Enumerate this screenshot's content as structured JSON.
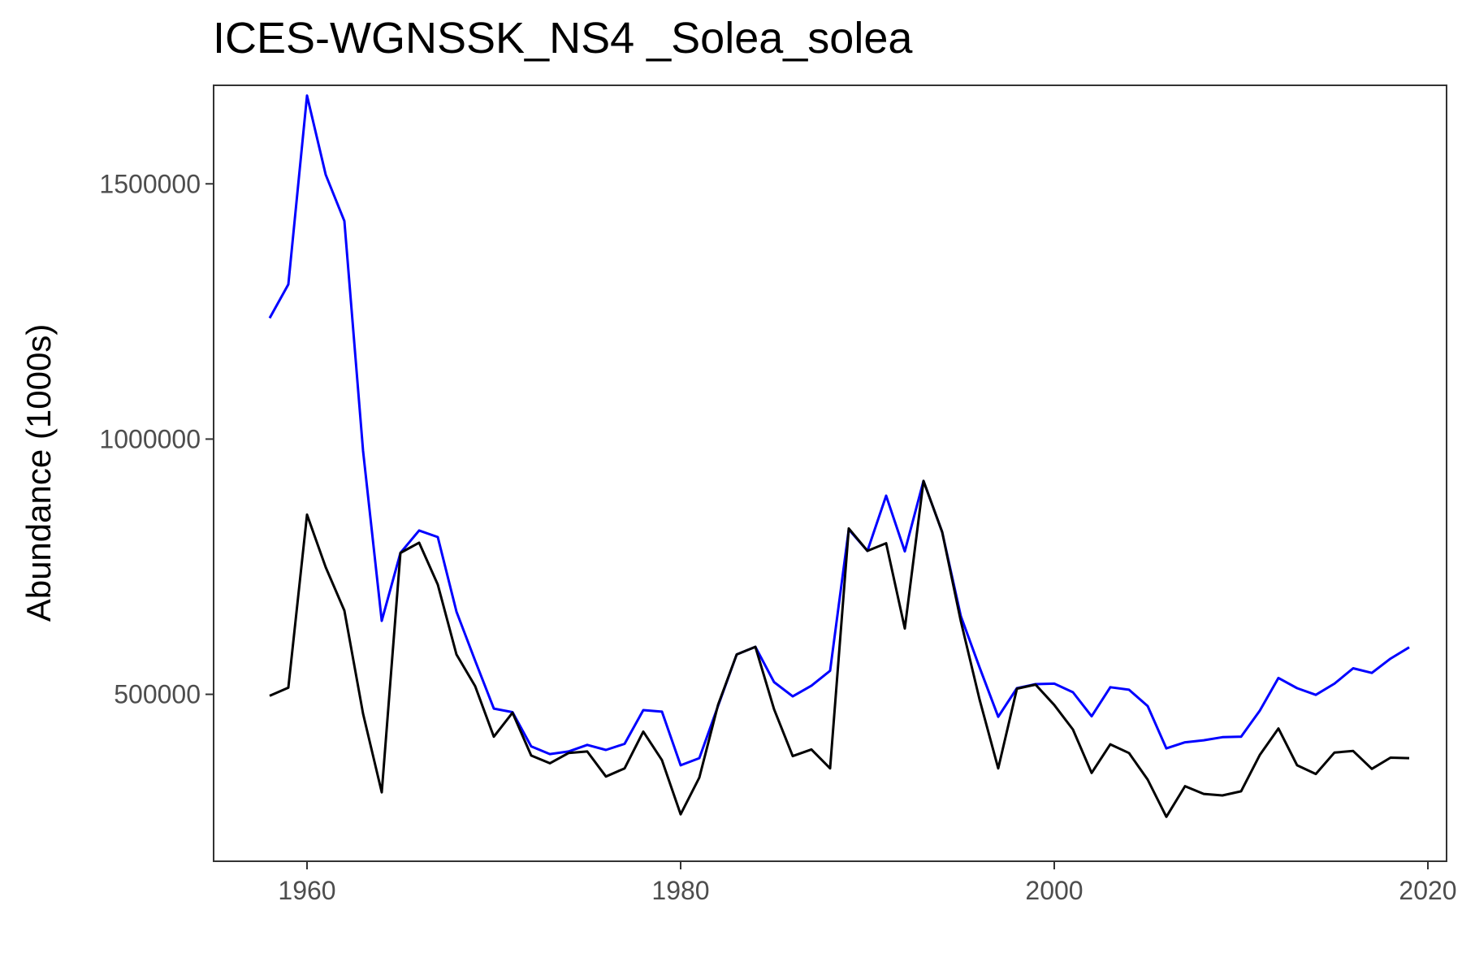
{
  "chart_data": {
    "type": "line",
    "title": "ICES-WGNSSK_NS4 _Solea_solea",
    "xlabel": "",
    "ylabel": "Abundance (1000s)",
    "xlim": [
      1955,
      2021
    ],
    "ylim": [
      173000,
      1693000
    ],
    "xticks": [
      1960,
      1980,
      2000,
      2020
    ],
    "xtick_labels": [
      "1960",
      "1980",
      "2000",
      "2020"
    ],
    "yticks": [
      500000,
      1000000,
      1500000
    ],
    "ytick_labels": [
      "500000",
      "1000000",
      "1500000"
    ],
    "grid": false,
    "legend": "none",
    "x": [
      1958,
      1959,
      1960,
      1961,
      1962,
      1963,
      1964,
      1965,
      1966,
      1967,
      1968,
      1969,
      1970,
      1971,
      1972,
      1973,
      1974,
      1975,
      1976,
      1977,
      1978,
      1979,
      1980,
      1981,
      1982,
      1983,
      1984,
      1985,
      1986,
      1987,
      1988,
      1989,
      1990,
      1991,
      1992,
      1993,
      1994,
      1995,
      1996,
      1997,
      1998,
      1999,
      2000,
      2001,
      2002,
      2003,
      2004,
      2005,
      2006,
      2007,
      2008,
      2009,
      2010,
      2011,
      2012,
      2013,
      2014,
      2015,
      2016,
      2017,
      2018,
      2019
    ],
    "series": [
      {
        "color": "#0000ff",
        "values": [
          1237000,
          1303000,
          1673000,
          1518000,
          1427000,
          977000,
          644000,
          777000,
          821000,
          808000,
          662000,
          566000,
          472000,
          465000,
          398000,
          383000,
          388000,
          401000,
          391000,
          403000,
          469000,
          466000,
          361000,
          375000,
          477000,
          578000,
          593000,
          524000,
          496000,
          517000,
          546000,
          823000,
          781000,
          889000,
          780000,
          918000,
          818000,
          653000,
          553000,
          456000,
          512000,
          520000,
          521000,
          504000,
          457000,
          514000,
          509000,
          477000,
          394000,
          406000,
          410000,
          416000,
          417000,
          468000,
          532000,
          512000,
          499000,
          521000,
          551000,
          542000,
          570000,
          592000
        ]
      },
      {
        "color": "#000000",
        "values": [
          497000,
          513000,
          852000,
          749000,
          664000,
          462000,
          308000,
          777000,
          797000,
          715000,
          578000,
          516000,
          417000,
          464000,
          380000,
          365000,
          385000,
          388000,
          339000,
          355000,
          427000,
          371000,
          265000,
          337000,
          479000,
          578000,
          593000,
          471000,
          379000,
          392000,
          355000,
          825000,
          781000,
          796000,
          629000,
          918000,
          818000,
          643000,
          490000,
          355000,
          511000,
          519000,
          479000,
          431000,
          346000,
          402000,
          385000,
          333000,
          260000,
          320000,
          305000,
          302000,
          310000,
          381000,
          433000,
          361000,
          344000,
          386000,
          389000,
          354000,
          376000,
          375000
        ]
      }
    ]
  }
}
